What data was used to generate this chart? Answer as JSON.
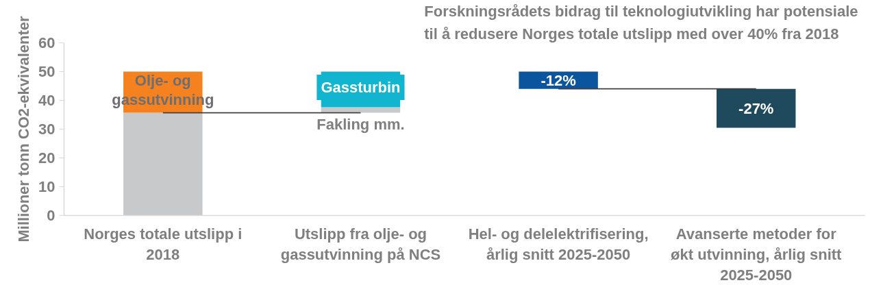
{
  "chart_data": {
    "type": "bar",
    "title": "Forskningsrådets bidrag til teknologiutvikling har potensiale til å redusere Norges totale utslipp med over 40% fra 2018",
    "ylabel": "Millioner tonn CO2-ekvivalenter",
    "categories": [
      "Norges totale utslipp i 2018",
      "Utslipp fra olje- og gassutvinning på NCS",
      "Hel- og delelektrifisering, årlig snitt 2025-2050",
      "Avanserte metoder for økt utvinning, årlig snitt 2025-2050"
    ],
    "series": [
      {
        "color": "#c8c9cb",
        "values": [
          35.7,
          null,
          null,
          null
        ],
        "base": [
          0,
          null,
          null,
          null
        ]
      },
      {
        "name": "Fakling mm.",
        "color": "#c8c9cb",
        "values": [
          null,
          1.9,
          null,
          null
        ],
        "base": [
          null,
          35.7,
          null,
          null
        ]
      },
      {
        "name": "Olje- og gassutvinning",
        "color": "#f5821f",
        "values": [
          14.3,
          null,
          null,
          null
        ],
        "base": [
          35.7,
          null,
          null,
          null
        ]
      },
      {
        "name": "Gassturbin",
        "color": "#12b5d0",
        "values": [
          null,
          12.4,
          null,
          null
        ],
        "base": [
          null,
          37.6,
          null,
          null
        ]
      },
      {
        "color": "#0b559f",
        "values": [
          null,
          null,
          -6,
          null
        ],
        "base": [
          null,
          null,
          50,
          null
        ]
      },
      {
        "color": "#1f4a5e",
        "values": [
          null,
          null,
          null,
          -13.5
        ],
        "base": [
          null,
          null,
          null,
          44
        ]
      },
      {
        "type": "line",
        "color": "#404040",
        "x": [
          "Norges totale utslipp i 2018",
          "Utslipp fra olje- og gassutvinning på NCS"
        ],
        "values": [
          35.7,
          35.7
        ]
      },
      {
        "type": "line",
        "color": "#404040",
        "x": [
          "Hel- og delelektrifisering, årlig snitt 2025-2050",
          "Avanserte metoder for økt utvinning, årlig snitt 2025-2050"
        ],
        "values": [
          44,
          44
        ]
      }
    ],
    "annotations": [
      {
        "text": "-12%",
        "x": "Hel- og delelektrifisering, årlig snitt 2025-2050",
        "y": 44
      },
      {
        "text": "-27%",
        "x": "Avanserte metoder for økt utvinning, årlig snitt 2025-2050",
        "y": 30.5
      }
    ],
    "ylim": [
      0,
      60
    ],
    "yticks": [
      0,
      10,
      20,
      30,
      40,
      50,
      60
    ]
  }
}
